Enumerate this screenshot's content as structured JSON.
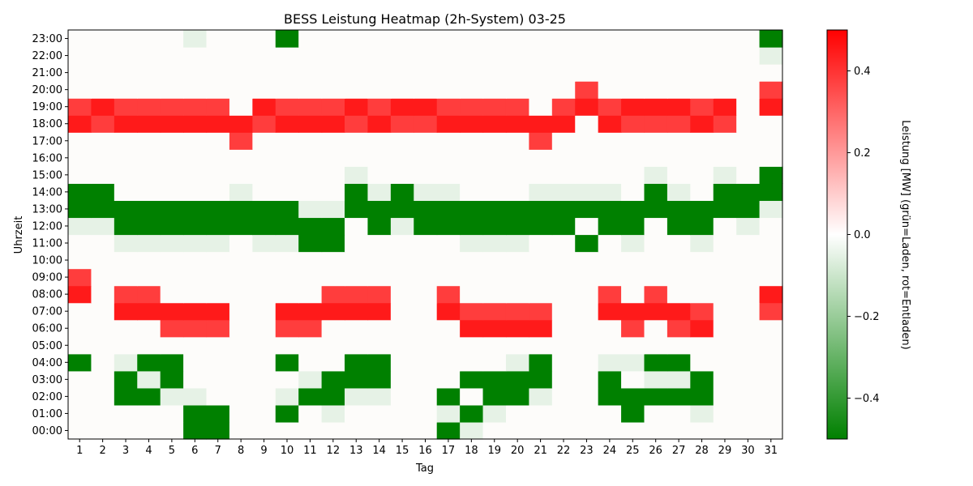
{
  "chart_data": {
    "type": "heatmap",
    "title": "BESS Leistung Heatmap (2h-System) 03-25",
    "xlabel": "Tag",
    "ylabel": "Uhrzeit",
    "x": [
      "1",
      "2",
      "3",
      "4",
      "5",
      "6",
      "7",
      "8",
      "9",
      "10",
      "11",
      "12",
      "13",
      "14",
      "15",
      "16",
      "17",
      "18",
      "19",
      "20",
      "21",
      "22",
      "23",
      "24",
      "25",
      "26",
      "27",
      "28",
      "29",
      "30",
      "31"
    ],
    "y": [
      "00:00",
      "01:00",
      "02:00",
      "03:00",
      "04:00",
      "05:00",
      "06:00",
      "07:00",
      "08:00",
      "09:00",
      "10:00",
      "11:00",
      "12:00",
      "13:00",
      "14:00",
      "15:00",
      "16:00",
      "17:00",
      "18:00",
      "19:00",
      "20:00",
      "21:00",
      "22:00",
      "23:00"
    ],
    "colorbar": {
      "label": "Leistung [MW] (grün=Laden, rot=Entladen)",
      "vmin": -0.5,
      "vmax": 0.5,
      "ticks": [
        "0.4",
        "0.2",
        "0.0",
        "−0.2",
        "−0.4"
      ],
      "tick_values": [
        0.4,
        0.2,
        0.0,
        -0.2,
        -0.4
      ],
      "color_negative": "#008000",
      "color_zero": "#ffffff",
      "color_positive": "#ff0000"
    },
    "values": [
      [
        0,
        0,
        0,
        0,
        0,
        -0.5,
        -0.5,
        0,
        0,
        0,
        0,
        0,
        0,
        0,
        0,
        0,
        -0.5,
        -0.05,
        0,
        0,
        0,
        0,
        0,
        0,
        0,
        0,
        0,
        0,
        0,
        0,
        0
      ],
      [
        0,
        0,
        0,
        0,
        0,
        -0.5,
        -0.5,
        0,
        0,
        -0.5,
        0,
        -0.05,
        0,
        0,
        0,
        0,
        -0.05,
        -0.5,
        -0.05,
        0,
        0,
        0,
        0,
        0,
        -0.5,
        0,
        0,
        -0.05,
        0,
        0,
        0
      ],
      [
        0,
        0,
        -0.5,
        -0.5,
        -0.05,
        -0.05,
        0,
        0,
        0,
        -0.05,
        -0.5,
        -0.5,
        -0.05,
        -0.05,
        0,
        0,
        -0.5,
        0,
        -0.5,
        -0.5,
        -0.05,
        0,
        0,
        -0.5,
        -0.5,
        -0.5,
        -0.5,
        -0.5,
        0,
        0,
        0
      ],
      [
        0,
        0,
        -0.5,
        -0.05,
        -0.5,
        0,
        0,
        0,
        0,
        0,
        -0.05,
        -0.5,
        -0.5,
        -0.5,
        0,
        0,
        0,
        -0.5,
        -0.5,
        -0.5,
        -0.5,
        0,
        0,
        -0.5,
        0,
        -0.05,
        -0.05,
        -0.5,
        0,
        0,
        0
      ],
      [
        -0.5,
        0,
        -0.05,
        -0.5,
        -0.5,
        0,
        0,
        0,
        0,
        -0.5,
        0,
        0,
        -0.5,
        -0.5,
        0,
        0,
        0,
        0,
        0,
        -0.05,
        -0.5,
        0,
        0,
        -0.05,
        -0.05,
        -0.5,
        -0.5,
        0,
        0,
        0,
        0
      ],
      [
        0,
        0,
        0,
        0,
        0,
        0,
        0,
        0,
        0,
        0,
        0,
        0,
        0,
        0,
        0,
        0,
        0,
        0,
        0,
        0,
        0,
        0,
        0,
        0,
        0,
        0,
        0,
        0,
        0,
        0,
        0
      ],
      [
        0,
        0,
        0,
        0,
        0.38,
        0.38,
        0.38,
        0,
        0,
        0.38,
        0.38,
        0,
        0,
        0,
        0,
        0,
        0,
        0.45,
        0.45,
        0.45,
        0.45,
        0,
        0,
        0,
        0.38,
        0,
        0.38,
        0.45,
        0,
        0,
        0
      ],
      [
        0,
        0,
        0.45,
        0.45,
        0.45,
        0.45,
        0.45,
        0,
        0,
        0.45,
        0.45,
        0.45,
        0.45,
        0.45,
        0,
        0,
        0.45,
        0.38,
        0.38,
        0.38,
        0.38,
        0,
        0,
        0.45,
        0.45,
        0.45,
        0.45,
        0.38,
        0,
        0,
        0.38
      ],
      [
        0.45,
        0,
        0.38,
        0.38,
        0,
        0,
        0,
        0,
        0,
        0,
        0,
        0.38,
        0.38,
        0.38,
        0,
        0,
        0.38,
        0,
        0,
        0,
        0,
        0,
        0,
        0.38,
        0,
        0.38,
        0,
        0,
        0,
        0,
        0.45
      ],
      [
        0.38,
        0,
        0,
        0,
        0,
        0,
        0,
        0,
        0,
        0,
        0,
        0,
        0,
        0,
        0,
        0,
        0,
        0,
        0,
        0,
        0,
        0,
        0,
        0,
        0,
        0,
        0,
        0,
        0,
        0,
        0
      ],
      [
        0,
        0,
        0,
        0,
        0,
        0,
        0,
        0,
        0,
        0,
        0,
        0,
        0,
        0,
        0,
        0,
        0,
        0,
        0,
        0,
        0,
        0,
        0,
        0,
        0,
        0,
        0,
        0,
        0,
        0,
        0
      ],
      [
        0,
        0,
        -0.05,
        -0.05,
        -0.05,
        -0.05,
        -0.05,
        0,
        -0.05,
        -0.05,
        -0.5,
        -0.5,
        0,
        0,
        0,
        0,
        0,
        -0.05,
        -0.05,
        -0.05,
        0,
        0,
        -0.5,
        0,
        -0.05,
        0,
        0,
        -0.05,
        0,
        0,
        0
      ],
      [
        -0.05,
        -0.05,
        -0.5,
        -0.5,
        -0.5,
        -0.5,
        -0.5,
        -0.5,
        -0.5,
        -0.5,
        -0.5,
        -0.5,
        0,
        -0.5,
        -0.05,
        -0.5,
        -0.5,
        -0.5,
        -0.5,
        -0.5,
        -0.5,
        -0.5,
        0,
        -0.5,
        -0.5,
        0,
        -0.5,
        -0.5,
        0,
        -0.05,
        0
      ],
      [
        -0.5,
        -0.5,
        -0.5,
        -0.5,
        -0.5,
        -0.5,
        -0.5,
        -0.5,
        -0.5,
        -0.5,
        -0.05,
        -0.05,
        -0.5,
        -0.5,
        -0.5,
        -0.5,
        -0.5,
        -0.5,
        -0.5,
        -0.5,
        -0.5,
        -0.5,
        -0.5,
        -0.5,
        -0.5,
        -0.5,
        -0.5,
        -0.5,
        -0.5,
        -0.5,
        -0.05
      ],
      [
        -0.5,
        -0.5,
        0,
        0,
        0,
        0,
        0,
        -0.05,
        0,
        0,
        0,
        0,
        -0.5,
        -0.05,
        -0.5,
        -0.05,
        -0.05,
        0,
        0,
        0,
        -0.05,
        -0.05,
        -0.05,
        -0.05,
        0,
        -0.5,
        -0.05,
        0,
        -0.5,
        -0.5,
        -0.5
      ],
      [
        0,
        0,
        0,
        0,
        0,
        0,
        0,
        0,
        0,
        0,
        0,
        0,
        -0.05,
        0,
        0,
        0,
        0,
        0,
        0,
        0,
        0,
        0,
        0,
        0,
        0,
        -0.05,
        0,
        0,
        -0.05,
        0,
        -0.5
      ],
      [
        0,
        0,
        0,
        0,
        0,
        0,
        0,
        0,
        0,
        0,
        0,
        0,
        0,
        0,
        0,
        0,
        0,
        0,
        0,
        0,
        0,
        0,
        0,
        0,
        0,
        0,
        0,
        0,
        0,
        0,
        0
      ],
      [
        0,
        0,
        0,
        0,
        0,
        0,
        0,
        0.38,
        0,
        0,
        0,
        0,
        0,
        0,
        0,
        0,
        0,
        0,
        0,
        0,
        0.38,
        0,
        0,
        0,
        0,
        0,
        0,
        0,
        0,
        0,
        0
      ],
      [
        0.45,
        0.38,
        0.45,
        0.45,
        0.45,
        0.45,
        0.45,
        0.45,
        0.38,
        0.45,
        0.45,
        0.45,
        0.38,
        0.45,
        0.38,
        0.38,
        0.45,
        0.45,
        0.45,
        0.45,
        0.45,
        0.45,
        0,
        0.45,
        0.38,
        0.38,
        0.38,
        0.45,
        0.38,
        0,
        0
      ],
      [
        0.38,
        0.45,
        0.38,
        0.38,
        0.38,
        0.38,
        0.38,
        0,
        0.45,
        0.38,
        0.38,
        0.38,
        0.45,
        0.38,
        0.45,
        0.45,
        0.38,
        0.38,
        0.38,
        0.38,
        0,
        0.38,
        0.45,
        0.38,
        0.45,
        0.45,
        0.45,
        0.38,
        0.45,
        0,
        0.45
      ],
      [
        0,
        0,
        0,
        0,
        0,
        0,
        0,
        0,
        0,
        0,
        0,
        0,
        0,
        0,
        0,
        0,
        0,
        0,
        0,
        0,
        0,
        0,
        0.38,
        0,
        0,
        0,
        0,
        0,
        0,
        0,
        0.38
      ],
      [
        0,
        0,
        0,
        0,
        0,
        0,
        0,
        0,
        0,
        0,
        0,
        0,
        0,
        0,
        0,
        0,
        0,
        0,
        0,
        0,
        0,
        0,
        0,
        0,
        0,
        0,
        0,
        0,
        0,
        0,
        0
      ],
      [
        0,
        0,
        0,
        0,
        0,
        0,
        0,
        0,
        0,
        0,
        0,
        0,
        0,
        0,
        0,
        0,
        0,
        0,
        0,
        0,
        0,
        0,
        0,
        0,
        0,
        0,
        0,
        0,
        0,
        0,
        -0.05
      ],
      [
        0,
        0,
        0,
        0,
        0,
        -0.05,
        0,
        0,
        0,
        -0.5,
        0,
        0,
        0,
        0,
        0,
        0,
        0,
        0,
        0,
        0,
        0,
        0,
        0,
        0,
        0,
        0,
        0,
        0,
        0,
        0,
        -0.5
      ]
    ]
  }
}
